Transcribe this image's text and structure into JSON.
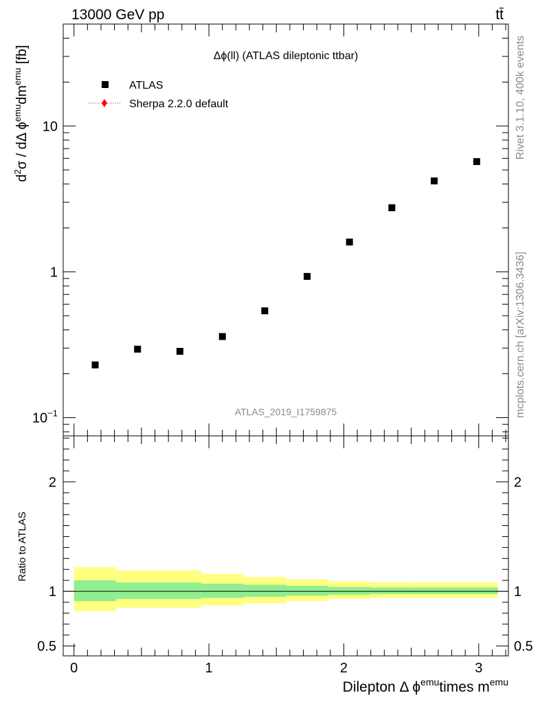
{
  "header": {
    "energy_label": "13000 GeV pp",
    "process_label": "tt̄"
  },
  "side_labels": {
    "rivet": "Rivet 3.1.10,  400k events",
    "mcplots": "mcplots.cern.ch [arXiv:1306.3436]"
  },
  "watermark": "ATLAS_2019_I1759875",
  "chart_data": [
    {
      "type": "scatter",
      "title": "Δϕ(ll) (ATLAS dileptonic ttbar)",
      "ylabel": {
        "base": "d",
        "sup1": "2",
        "mid": "σ / dΔ ϕ",
        "sup2": "emu",
        "mid2": "dm",
        "sup3": "emu",
        "unit": " [fb]"
      },
      "yscale": "log",
      "ylim": [
        0.075,
        50
      ],
      "xlim": [
        -0.08,
        3.22
      ],
      "yticks": [
        {
          "value": 0.1,
          "label": "10",
          "sup": "−1"
        },
        {
          "value": 1,
          "label": "1",
          "sup": ""
        },
        {
          "value": 10,
          "label": "10",
          "sup": ""
        }
      ],
      "legend": {
        "placement": "top-left",
        "entries": [
          {
            "name": "ATLAS",
            "marker": "square",
            "color": "#000000"
          },
          {
            "name": "Sherpa 2.2.0 default",
            "marker": "diamond-dotted-line",
            "color": "#ff0000"
          }
        ]
      },
      "series": [
        {
          "name": "ATLAS",
          "x": [
            0.157,
            0.471,
            0.785,
            1.1,
            1.414,
            1.728,
            2.042,
            2.356,
            2.67,
            2.985
          ],
          "y": [
            0.23,
            0.295,
            0.285,
            0.36,
            0.54,
            0.93,
            1.6,
            2.75,
            4.2,
            5.7
          ]
        }
      ],
      "grid": false
    },
    {
      "type": "area",
      "ylabel": "Ratio to ATLAS",
      "ylim": [
        0.41,
        2.42
      ],
      "yticks": [
        {
          "value": 0.5,
          "label": "0.5"
        },
        {
          "value": 1,
          "label": "1"
        },
        {
          "value": 2,
          "label": "2"
        }
      ],
      "xticks": [
        {
          "value": 0,
          "label": "0"
        },
        {
          "value": 1,
          "label": "1"
        },
        {
          "value": 2,
          "label": "2"
        },
        {
          "value": 3,
          "label": "3"
        }
      ],
      "xlabel": {
        "base": "Dilepton Δ ϕ",
        "sup1": "emu",
        "mid": "times m",
        "sup2": "emu"
      },
      "bins": [
        0,
        0.314,
        0.628,
        0.942,
        1.257,
        1.571,
        1.885,
        2.199,
        2.513,
        2.827,
        3.142
      ],
      "stat_band": {
        "color": "#90ee90",
        "low": [
          0.91,
          0.93,
          0.93,
          0.94,
          0.95,
          0.96,
          0.97,
          0.975,
          0.975,
          0.975
        ],
        "high": [
          1.1,
          1.08,
          1.08,
          1.07,
          1.06,
          1.05,
          1.04,
          1.035,
          1.035,
          1.035
        ]
      },
      "total_band": {
        "color": "#ffff80",
        "low": [
          0.82,
          0.85,
          0.85,
          0.87,
          0.89,
          0.91,
          0.93,
          0.94,
          0.94,
          0.94
        ],
        "high": [
          1.22,
          1.19,
          1.19,
          1.16,
          1.13,
          1.11,
          1.09,
          1.08,
          1.08,
          1.08
        ]
      },
      "reference_line": 1
    }
  ]
}
